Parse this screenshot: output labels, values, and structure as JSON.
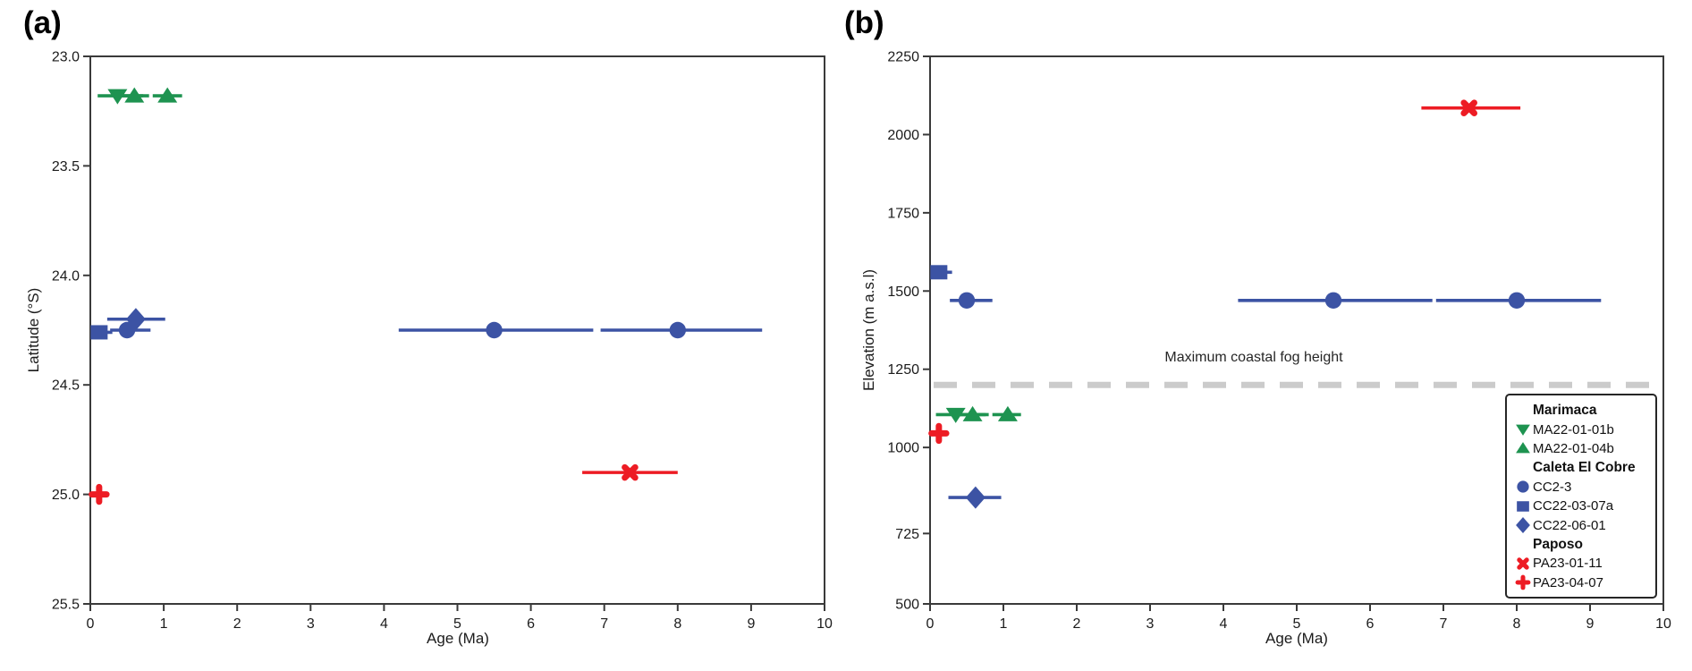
{
  "colors": {
    "green": "#1e9350",
    "blue": "#3c53a4",
    "red": "#ed1c24",
    "fog": "#cbcbcb",
    "axis": "#3a3a3a",
    "text": "#1b1b1b"
  },
  "series_styles": {
    "MA22-01-01b": {
      "marker": "triangle-down",
      "color": "green"
    },
    "MA22-01-04b": {
      "marker": "triangle-up",
      "color": "green"
    },
    "CC2-3": {
      "marker": "circle",
      "color": "blue"
    },
    "CC22-03-07a": {
      "marker": "square",
      "color": "blue"
    },
    "CC22-06-01": {
      "marker": "diamond",
      "color": "blue"
    },
    "PA23-01-11": {
      "marker": "x",
      "color": "red"
    },
    "PA23-04-07": {
      "marker": "plus",
      "color": "red"
    }
  },
  "legend": {
    "groups": [
      {
        "title": "Marimaca",
        "items": [
          {
            "sample": "MA22-01-01b",
            "label": "MA22-01-01b"
          },
          {
            "sample": "MA22-01-04b",
            "label": "MA22-01-04b"
          }
        ]
      },
      {
        "title": "Caleta El Cobre",
        "items": [
          {
            "sample": "CC2-3",
            "label": "CC2-3"
          },
          {
            "sample": "CC22-03-07a",
            "label": "CC22-03-07a"
          },
          {
            "sample": "CC22-06-01",
            "label": "CC22-06-01"
          }
        ]
      },
      {
        "title": "Paposo",
        "items": [
          {
            "sample": "PA23-01-11",
            "label": "PA23-01-11"
          },
          {
            "sample": "PA23-04-07",
            "label": "PA23-04-07"
          }
        ]
      }
    ]
  },
  "chart_data": [
    {
      "type": "scatter",
      "panel_label": "(a)",
      "xlabel": "Age (Ma)",
      "ylabel": "Latitude (°S)",
      "xlim": [
        0,
        10
      ],
      "ylim": [
        23.0,
        25.5
      ],
      "y_axis_inverted": true,
      "grid": false,
      "x_ticks": [
        0,
        1,
        2,
        3,
        4,
        5,
        6,
        7,
        8,
        9,
        10
      ],
      "x_tick_labels": [
        "0",
        "1",
        "2",
        "3",
        "4",
        "5",
        "6",
        "7",
        "8",
        "9",
        "10"
      ],
      "y_ticks": [
        23.0,
        23.5,
        24.0,
        24.5,
        25.0,
        25.5
      ],
      "y_tick_labels": [
        "23.0",
        "23.5",
        "24.0",
        "24.5",
        "25.0",
        "25.5"
      ],
      "points": [
        {
          "sample": "MA22-01-01b",
          "x": 0.37,
          "y": 23.18,
          "xerr": [
            0.1,
            0.72
          ]
        },
        {
          "sample": "MA22-01-04b",
          "x": 0.6,
          "y": 23.18,
          "xerr": [
            0.35,
            0.8
          ]
        },
        {
          "sample": "MA22-01-04b",
          "x": 1.05,
          "y": 23.18,
          "xerr": [
            0.85,
            1.25
          ]
        },
        {
          "sample": "CC22-03-07a",
          "x": 0.12,
          "y": 24.26,
          "xerr": [
            0.02,
            0.3
          ]
        },
        {
          "sample": "CC2-3",
          "x": 0.5,
          "y": 24.25,
          "xerr": [
            0.27,
            0.82
          ]
        },
        {
          "sample": "CC22-06-01",
          "x": 0.62,
          "y": 24.2,
          "xerr": [
            0.23,
            1.02
          ]
        },
        {
          "sample": "CC2-3",
          "x": 5.5,
          "y": 24.25,
          "xerr": [
            4.2,
            6.85
          ]
        },
        {
          "sample": "CC2-3",
          "x": 8.0,
          "y": 24.25,
          "xerr": [
            6.95,
            9.15
          ]
        },
        {
          "sample": "PA23-01-11",
          "x": 7.35,
          "y": 24.9,
          "xerr": [
            6.7,
            8.0
          ]
        },
        {
          "sample": "PA23-04-07",
          "x": 0.12,
          "y": 25.0,
          "xerr": [
            0.04,
            0.22
          ]
        }
      ]
    },
    {
      "type": "scatter",
      "panel_label": "(b)",
      "xlabel": "Age (Ma)",
      "ylabel": "Elevation (m a.s.l)",
      "xlim": [
        0,
        10
      ],
      "ylim": [
        500,
        2250
      ],
      "y_axis_inverted": false,
      "grid": false,
      "x_ticks": [
        0,
        1,
        2,
        3,
        4,
        5,
        6,
        7,
        8,
        9,
        10
      ],
      "x_tick_labels": [
        "0",
        "1",
        "2",
        "3",
        "4",
        "5",
        "6",
        "7",
        "8",
        "9",
        "10"
      ],
      "y_ticks": [
        500,
        725,
        1000,
        1250,
        1500,
        1750,
        2000,
        2250
      ],
      "y_tick_labels": [
        "500",
        "725",
        "1000",
        "1250",
        "1500",
        "1750",
        "2000",
        "2250"
      ],
      "fog_line": {
        "y": 1200,
        "label": "Maximum coastal fog height"
      },
      "points": [
        {
          "sample": "CC22-03-07a",
          "x": 0.12,
          "y": 1560,
          "xerr": [
            0.02,
            0.3
          ]
        },
        {
          "sample": "CC2-3",
          "x": 0.5,
          "y": 1470,
          "xerr": [
            0.27,
            0.85
          ]
        },
        {
          "sample": "CC2-3",
          "x": 5.5,
          "y": 1470,
          "xerr": [
            4.2,
            6.85
          ]
        },
        {
          "sample": "CC2-3",
          "x": 8.0,
          "y": 1470,
          "xerr": [
            6.9,
            9.15
          ]
        },
        {
          "sample": "PA23-01-11",
          "x": 7.35,
          "y": 2085,
          "xerr": [
            6.7,
            8.05
          ]
        },
        {
          "sample": "MA22-01-01b",
          "x": 0.35,
          "y": 1105,
          "xerr": [
            0.08,
            0.76
          ]
        },
        {
          "sample": "MA22-01-04b",
          "x": 0.58,
          "y": 1105,
          "xerr": [
            0.35,
            0.8
          ]
        },
        {
          "sample": "MA22-01-04b",
          "x": 1.06,
          "y": 1105,
          "xerr": [
            0.85,
            1.24
          ]
        },
        {
          "sample": "PA23-04-07",
          "x": 0.12,
          "y": 1045,
          "xerr": [
            0.04,
            0.22
          ]
        },
        {
          "sample": "CC22-06-01",
          "x": 0.62,
          "y": 840,
          "xerr": [
            0.25,
            0.97
          ]
        }
      ]
    }
  ]
}
